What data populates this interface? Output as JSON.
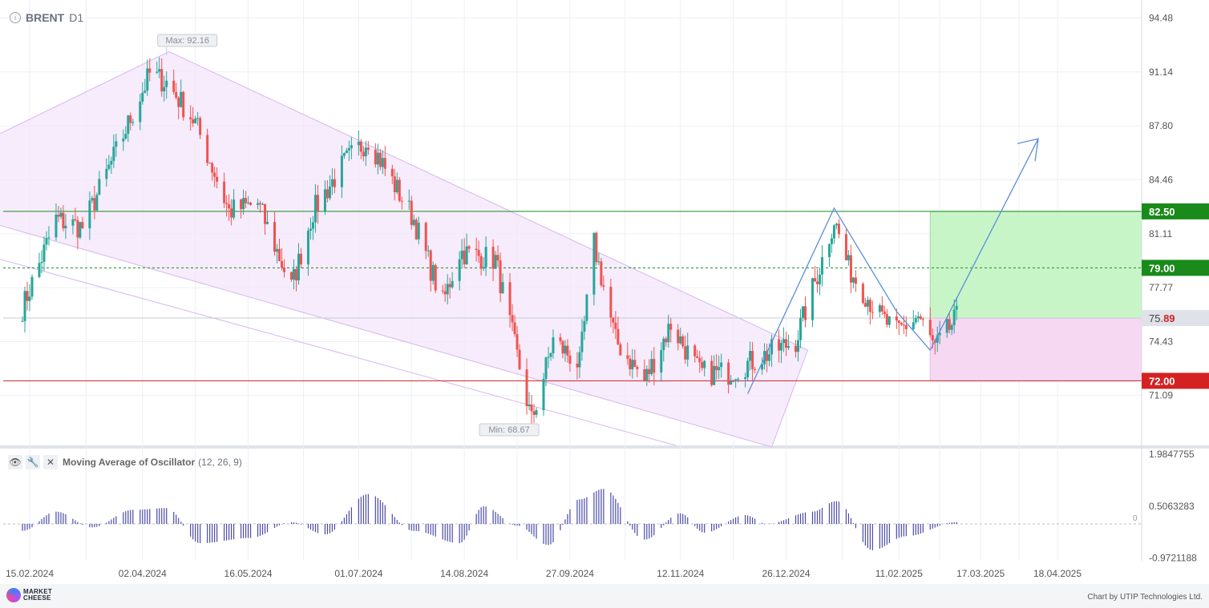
{
  "header": {
    "symbol": "BRENT",
    "timeframe": "D1",
    "info_icon": "info-icon"
  },
  "oscillator": {
    "title": "Moving Average of Oscillator",
    "params": "(12, 26, 9)",
    "icons": [
      "eye-icon",
      "wrench-icon",
      "close-icon"
    ]
  },
  "footer": {
    "logo_line1": "MARKET",
    "logo_line2": "CHEESE",
    "credit": "Chart by UTIP Technologies Ltd."
  },
  "chart_data": [
    {
      "type": "candlestick",
      "symbol": "BRENT",
      "timeframe": "D1",
      "y_ticks": [
        "94.48",
        "91.14",
        "87.80",
        "84.46",
        "81.11",
        "77.77",
        "74.43",
        "71.09"
      ],
      "ylim": [
        68.0,
        95.3
      ],
      "x_ticks": [
        "15.02.2024",
        "02.04.2024",
        "16.05.2024",
        "01.07.2024",
        "14.08.2024",
        "27.09.2024",
        "12.11.2024",
        "26.12.2024",
        "11.02.2025",
        "17.03.2025",
        "18.04.2025"
      ],
      "annotations": {
        "max_label": "Max: 92.16",
        "min_label": "Min: 68.67"
      },
      "levels": [
        {
          "value": 82.5,
          "label": "82.50",
          "color": "#1a8a1a"
        },
        {
          "value": 79.0,
          "label": "79.00",
          "color": "#1a8a1a",
          "style": "dashed"
        },
        {
          "value": 72.0,
          "label": "72.00",
          "color": "#cc2222"
        }
      ],
      "current_price": {
        "value": 75.89,
        "label_main": "75.",
        "label_tail": "89"
      },
      "colors": {
        "up": "#26a69a",
        "down": "#ef5350",
        "channel": "#f3e5fa",
        "target_zone": "#c8f5c8",
        "stop_zone": "#f6d8f3",
        "arrow": "#5b8fd6"
      },
      "series_anchors": [
        {
          "date": "12.02.2024",
          "close": 76.5
        },
        {
          "date": "26.02.2024",
          "close": 82.0
        },
        {
          "date": "08.03.2024",
          "close": 81.5
        },
        {
          "date": "20.03.2024",
          "close": 85.5
        },
        {
          "date": "05.04.2024",
          "close": 91.0
        },
        {
          "date": "12.04.2024",
          "close": 90.5
        },
        {
          "date": "24.04.2024",
          "close": 88.0
        },
        {
          "date": "08.05.2024",
          "close": 82.5
        },
        {
          "date": "20.05.2024",
          "close": 83.0
        },
        {
          "date": "03.06.2024",
          "close": 77.8
        },
        {
          "date": "12.06.2024",
          "close": 82.5
        },
        {
          "date": "25.06.2024",
          "close": 85.5
        },
        {
          "date": "05.07.2024",
          "close": 87.0
        },
        {
          "date": "24.07.2024",
          "close": 82.0
        },
        {
          "date": "05.08.2024",
          "close": 76.8
        },
        {
          "date": "12.08.2024",
          "close": 80.0
        },
        {
          "date": "27.08.2024",
          "close": 79.5
        },
        {
          "date": "11.09.2024",
          "close": 69.5
        },
        {
          "date": "20.09.2024",
          "close": 74.5
        },
        {
          "date": "01.10.2024",
          "close": 73.0
        },
        {
          "date": "07.10.2024",
          "close": 80.5
        },
        {
          "date": "16.10.2024",
          "close": 74.5
        },
        {
          "date": "28.10.2024",
          "close": 72.0
        },
        {
          "date": "08.11.2024",
          "close": 75.5
        },
        {
          "date": "20.11.2024",
          "close": 72.5
        },
        {
          "date": "02.12.2024",
          "close": 72.5
        },
        {
          "date": "16.12.2024",
          "close": 73.5
        },
        {
          "date": "30.12.2024",
          "close": 74.5
        },
        {
          "date": "10.01.2025",
          "close": 79.5
        },
        {
          "date": "15.01.2025",
          "close": 82.0
        },
        {
          "date": "21.01.2025",
          "close": 79.0
        },
        {
          "date": "03.02.2025",
          "close": 76.0
        },
        {
          "date": "10.02.2025",
          "close": 75.0
        },
        {
          "date": "19.02.2025",
          "close": 76.0
        },
        {
          "date": "26.02.2025",
          "close": 74.0
        },
        {
          "date": "07.03.2025",
          "close": 75.89
        }
      ]
    },
    {
      "type": "histogram",
      "name": "Moving Average of Oscillator",
      "params": "(12, 26, 9)",
      "y_ticks": [
        "1.9847755",
        "0.5063283",
        "0",
        "-0.9721188"
      ],
      "ylim": [
        -1.05,
        2.1
      ],
      "color": "#4a4aa8",
      "series_anchors": [
        {
          "date": "12.02.2024",
          "value": -0.2
        },
        {
          "date": "26.02.2024",
          "value": 0.35
        },
        {
          "date": "12.03.2024",
          "value": -0.1
        },
        {
          "date": "29.03.2024",
          "value": 0.4
        },
        {
          "date": "12.04.2024",
          "value": 0.45
        },
        {
          "date": "26.04.2024",
          "value": -0.55
        },
        {
          "date": "17.05.2024",
          "value": -0.4
        },
        {
          "date": "03.06.2024",
          "value": 0.05
        },
        {
          "date": "17.06.2024",
          "value": -0.3
        },
        {
          "date": "05.07.2024",
          "value": 0.85
        },
        {
          "date": "24.07.2024",
          "value": -0.2
        },
        {
          "date": "12.08.2024",
          "value": -0.55
        },
        {
          "date": "22.08.2024",
          "value": 0.5
        },
        {
          "date": "05.09.2024",
          "value": -0.05
        },
        {
          "date": "18.09.2024",
          "value": -0.6
        },
        {
          "date": "01.10.2024",
          "value": 0.7
        },
        {
          "date": "11.10.2024",
          "value": 1.0
        },
        {
          "date": "28.10.2024",
          "value": -0.45
        },
        {
          "date": "12.11.2024",
          "value": 0.3
        },
        {
          "date": "22.11.2024",
          "value": -0.25
        },
        {
          "date": "09.12.2024",
          "value": 0.25
        },
        {
          "date": "18.12.2024",
          "value": 0.0
        },
        {
          "date": "06.01.2025",
          "value": 0.35
        },
        {
          "date": "16.01.2025",
          "value": 0.65
        },
        {
          "date": "31.01.2025",
          "value": -0.75
        },
        {
          "date": "14.02.2025",
          "value": -0.35
        },
        {
          "date": "07.03.2025",
          "value": 0.05
        }
      ]
    }
  ]
}
